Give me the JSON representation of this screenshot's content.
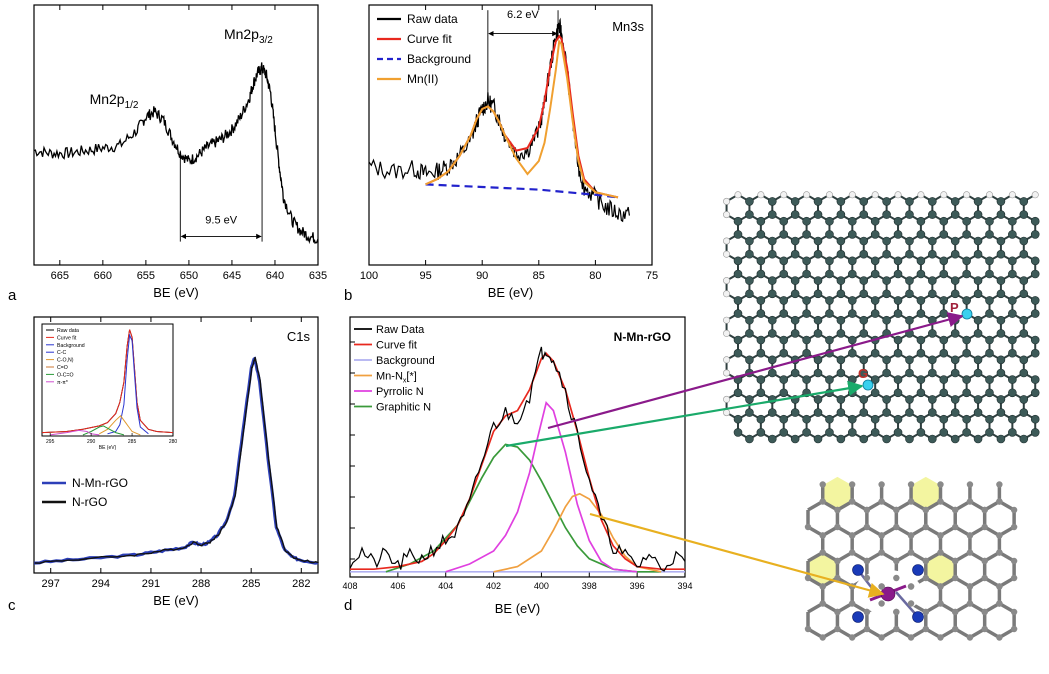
{
  "panel_labels": [
    "a",
    "b",
    "c",
    "d"
  ],
  "chart_data": [
    {
      "id": "a",
      "type": "line",
      "xlabel": "BE (eV)",
      "xlim": [
        668,
        635
      ],
      "x_ticks": [
        665,
        660,
        655,
        650,
        645,
        640,
        635
      ],
      "ylim": [
        0,
        100
      ],
      "annotations": [
        {
          "text": "Mn2p",
          "sub": "1/2",
          "x": 655.5,
          "y": 62
        },
        {
          "text": "Mn2p",
          "sub": "3/2",
          "x": 645,
          "y": 87
        },
        {
          "text": "9.5 eV",
          "x": 645,
          "y": 16
        }
      ],
      "series": [
        {
          "name": "",
          "color": "#000000",
          "x": [
            668,
            666,
            664,
            662,
            660,
            658,
            656,
            655,
            654,
            653,
            652,
            651,
            650,
            649,
            648,
            647,
            646,
            645,
            644,
            643,
            642.5,
            642,
            641.5,
            641,
            640.5,
            640,
            639.5,
            639,
            638,
            637,
            636,
            635
          ],
          "y": [
            44,
            43,
            43,
            44,
            45,
            46,
            52,
            57,
            59,
            56,
            49,
            43,
            40,
            42,
            45,
            47,
            49,
            52,
            57,
            64,
            70,
            74,
            76,
            73,
            66,
            52,
            38,
            26,
            17,
            13,
            11,
            10
          ]
        }
      ]
    },
    {
      "id": "b",
      "type": "line",
      "title": "Mn3s",
      "xlabel": "BE (eV)",
      "xlim": [
        100,
        75
      ],
      "x_ticks": [
        100,
        95,
        90,
        85,
        80,
        75
      ],
      "ylim": [
        0,
        100
      ],
      "legend": [
        "Raw data",
        "Curve fit",
        "Background",
        "Mn(II)"
      ],
      "legend_position": "top-left",
      "annotations": [
        {
          "text": "6.2 eV",
          "x": 86.3,
          "y": 95
        }
      ],
      "series": [
        {
          "name": "Raw data",
          "color": "#000000",
          "style": "solid",
          "x": [
            100,
            98,
            96,
            95,
            94,
            93,
            92,
            91,
            90.5,
            90,
            89.5,
            89,
            88.5,
            88,
            87,
            86,
            85,
            84.5,
            84,
            83.5,
            83.2,
            83,
            82.5,
            82,
            81.5,
            81,
            80,
            79,
            78,
            77
          ],
          "y": [
            38,
            36,
            37,
            35,
            36,
            38,
            42,
            48,
            55,
            60,
            63,
            61,
            56,
            50,
            43,
            44,
            52,
            62,
            76,
            88,
            92,
            89,
            75,
            55,
            38,
            30,
            26,
            22,
            20,
            19
          ]
        },
        {
          "name": "Curve fit",
          "color": "#e8281e",
          "style": "solid",
          "x": [
            95,
            94,
            93,
            92,
            91,
            90.5,
            90,
            89.5,
            89,
            88.5,
            88,
            87,
            86,
            85,
            84.5,
            84,
            83.5,
            83.2,
            83,
            82.5,
            82,
            81.5,
            81,
            80,
            79,
            78
          ],
          "y": [
            31,
            33,
            36,
            42,
            50,
            56,
            60,
            61,
            59,
            55,
            50,
            44,
            45,
            53,
            63,
            76,
            86,
            88,
            87,
            76,
            58,
            42,
            33,
            28,
            27,
            26
          ]
        },
        {
          "name": "Background",
          "color": "#2222cc",
          "style": "dashed",
          "x": [
            95,
            90,
            85,
            80,
            78
          ],
          "y": [
            31,
            30,
            29,
            27,
            26
          ]
        },
        {
          "name": "Mn(II)",
          "color": "#f0a030",
          "style": "solid",
          "x": [
            95,
            94,
            93,
            92,
            91,
            90.5,
            90,
            89.5,
            89,
            88.5,
            88,
            87,
            86,
            85,
            84.5,
            84,
            83.5,
            83.2,
            83,
            82.5,
            82,
            81.5,
            81,
            80,
            79,
            78
          ],
          "y": [
            31,
            33,
            36,
            42,
            50,
            56,
            60,
            61,
            59,
            55,
            50,
            41,
            35,
            40,
            47,
            60,
            75,
            86,
            85,
            72,
            55,
            40,
            32,
            28,
            27,
            26
          ]
        }
      ]
    },
    {
      "id": "c",
      "type": "line",
      "title": "C1s",
      "xlabel": "BE (eV)",
      "xlim": [
        298,
        281
      ],
      "x_ticks": [
        297,
        294,
        291,
        288,
        285,
        282
      ],
      "ylim": [
        0,
        100
      ],
      "legend": [
        "N-Mn-rGO",
        "N-rGO"
      ],
      "legend_position": "bottom-left",
      "series": [
        {
          "name": "N-Mn-rGO",
          "color": "#2c3fb8",
          "x": [
            298,
            296,
            294,
            292,
            291,
            290,
            289,
            288.5,
            288,
            287.5,
            287,
            286.5,
            286,
            285.5,
            285,
            284.8,
            284.5,
            284,
            283.5,
            283,
            282.5,
            282,
            281
          ],
          "y": [
            4,
            5,
            6,
            7,
            8,
            9,
            10,
            12,
            11,
            12,
            15,
            20,
            30,
            55,
            80,
            84,
            75,
            45,
            18,
            9,
            6,
            5,
            4
          ]
        },
        {
          "name": "N-rGO",
          "color": "#111111",
          "x": [
            298,
            296,
            294,
            292,
            291,
            290,
            289,
            288.5,
            288,
            287.5,
            287,
            286.5,
            286,
            285.5,
            285,
            284.8,
            284.5,
            284,
            283.5,
            283,
            282.5,
            282,
            281
          ],
          "y": [
            4,
            5,
            6,
            7,
            8,
            9,
            10,
            12,
            11,
            12,
            15,
            20,
            30,
            55,
            80,
            84,
            75,
            45,
            18,
            9,
            6,
            5,
            4
          ]
        }
      ],
      "inset": {
        "legend": [
          "Raw data",
          "Curve fit",
          "Background",
          "C-C",
          "C-O,N)",
          "C=O",
          "O-C=O",
          "π-π*"
        ],
        "legend_colors": [
          "#000000",
          "#e8281e",
          "#2a35d0",
          "#2a35d0",
          "#e09a30",
          "#cc7733",
          "#2a9a3a",
          "#d050d0"
        ],
        "xlabel": "BE (eV)",
        "xlim": [
          296,
          280
        ],
        "x_ticks": [
          295,
          290,
          285,
          280
        ],
        "x_tick_labels": [
          "295",
          "290",
          "285",
          "280"
        ],
        "ylim": [
          0,
          100
        ],
        "series": [
          {
            "name": "Raw data",
            "color": "#000000",
            "x": [
              296,
              293,
              291,
              289,
              288,
              287,
              286.5,
              286,
              285.6,
              285.3,
              285,
              284.7,
              284.4,
              284,
              283,
              282,
              280
            ],
            "y": [
              3,
              4,
              6,
              9,
              12,
              20,
              30,
              48,
              80,
              95,
              88,
              60,
              30,
              14,
              6,
              4,
              3
            ]
          },
          {
            "name": "Curve fit",
            "color": "#e8281e",
            "x": [
              296,
              293,
              291,
              289,
              288,
              287,
              286.5,
              286,
              285.6,
              285.3,
              285,
              284.7,
              284.4,
              284,
              283,
              282,
              280
            ],
            "y": [
              3,
              4,
              6,
              9,
              12,
              20,
              30,
              48,
              80,
              95,
              88,
              60,
              30,
              14,
              6,
              4,
              3
            ]
          },
          {
            "name": "C-C",
            "color": "#2a35d0",
            "x": [
              288,
              287,
              286.5,
              286,
              285.6,
              285.3,
              285,
              284.7,
              284.4,
              284,
              283
            ],
            "y": [
              2,
              4,
              10,
              28,
              68,
              90,
              85,
              55,
              25,
              8,
              2
            ]
          },
          {
            "name": "C-O,N)",
            "color": "#e09a30",
            "x": [
              289,
              288,
              287,
              286.4,
              286,
              285,
              284
            ],
            "y": [
              2,
              6,
              14,
              18,
              14,
              4,
              1
            ]
          },
          {
            "name": "O-C=O",
            "color": "#2a9a3a",
            "x": [
              291,
              290,
              289,
              288.5,
              288,
              287,
              286
            ],
            "y": [
              1,
              4,
              8,
              9,
              7,
              3,
              1
            ]
          },
          {
            "name": "π-π*",
            "color": "#d050d0",
            "x": [
              295,
              293,
              291.5,
              290.5,
              290,
              289
            ],
            "y": [
              1,
              3,
              5,
              4,
              2,
              1
            ]
          }
        ]
      }
    },
    {
      "id": "d",
      "type": "line",
      "title": "N-Mn-rGO",
      "xlabel": "BE (eV)",
      "xlim": [
        408,
        394
      ],
      "x_ticks": [
        408,
        406,
        404,
        402,
        400,
        398,
        396,
        394
      ],
      "ylim": [
        0,
        100
      ],
      "legend": [
        "Raw Data",
        "Curve fit",
        "Background",
        "Mn-N",
        "Pyrrolic N",
        "Graphitic N"
      ],
      "legend_mn_suffix": "[*]",
      "legend_mn_sub": "x",
      "legend_position": "top-left",
      "series": [
        {
          "name": "Raw Data",
          "color": "#000000",
          "x": [
            408,
            407.5,
            407,
            406.5,
            406,
            405.5,
            405,
            404.5,
            404,
            403.5,
            403,
            402.5,
            402,
            401.5,
            401,
            400.5,
            400,
            399.8,
            399.5,
            399,
            398.5,
            398,
            397.5,
            397,
            396.5,
            396,
            395.5,
            395,
            394.5,
            394
          ],
          "y": [
            6,
            10,
            5,
            9,
            4,
            8,
            7,
            11,
            14,
            18,
            28,
            44,
            58,
            63,
            61,
            70,
            86,
            88,
            84,
            72,
            55,
            38,
            22,
            12,
            8,
            4,
            9,
            3,
            8,
            6
          ]
        },
        {
          "name": "Curve fit",
          "color": "#e8281e",
          "x": [
            408,
            407,
            406,
            405,
            404.5,
            404,
            403.5,
            403,
            402.5,
            402,
            401.5,
            401,
            400.5,
            400,
            399.8,
            399.5,
            399,
            398.5,
            398,
            397.5,
            397,
            396.5,
            396,
            395,
            394
          ],
          "y": [
            3,
            3,
            4,
            6,
            9,
            14,
            20,
            30,
            43,
            56,
            62,
            64,
            72,
            84,
            86,
            83,
            72,
            56,
            38,
            22,
            12,
            7,
            4,
            3,
            3
          ]
        },
        {
          "name": "Background",
          "color": "#b0b0f0",
          "x": [
            408,
            394
          ],
          "y": [
            2,
            2
          ]
        },
        {
          "name": "Mn-N",
          "color": "#f0a040",
          "x": [
            402,
            401,
            400,
            399.5,
            399,
            398.7,
            398.4,
            398,
            397.5,
            397,
            396.5,
            396,
            395
          ],
          "y": [
            2,
            4,
            10,
            18,
            27,
            31,
            32,
            30,
            24,
            15,
            8,
            4,
            2
          ]
        },
        {
          "name": "Pyrrolic N",
          "color": "#e040e0",
          "x": [
            404,
            403,
            402,
            401.5,
            401,
            400.5,
            400.2,
            399.8,
            399.5,
            399,
            398.5,
            398,
            397.5,
            397,
            396
          ],
          "y": [
            2,
            5,
            10,
            16,
            25,
            40,
            52,
            67,
            64,
            48,
            28,
            14,
            6,
            3,
            2
          ]
        },
        {
          "name": "Graphitic N",
          "color": "#3a9a3a",
          "x": [
            406.5,
            405.5,
            404.5,
            403.5,
            403,
            402.5,
            402,
            401.5,
            401,
            400.5,
            400,
            399.5,
            399,
            398.5,
            398,
            397,
            396,
            395
          ],
          "y": [
            2,
            5,
            10,
            20,
            29,
            38,
            46,
            51,
            50,
            45,
            37,
            28,
            19,
            12,
            7,
            3,
            2,
            2
          ]
        }
      ]
    }
  ],
  "structures": {
    "labels": [
      {
        "text": "P",
        "color": "#a0203a"
      },
      {
        "text": "G",
        "color": "#c0302a"
      }
    ],
    "atom_color": "#3d5a58",
    "highlight_color": "#3ad0ee",
    "bottom_hex_fill": "#f3f5a0",
    "bottom_atom_color": "#8a8a8a",
    "n_color": "#1a3ab8",
    "mn_color": "#8a1a8a"
  }
}
